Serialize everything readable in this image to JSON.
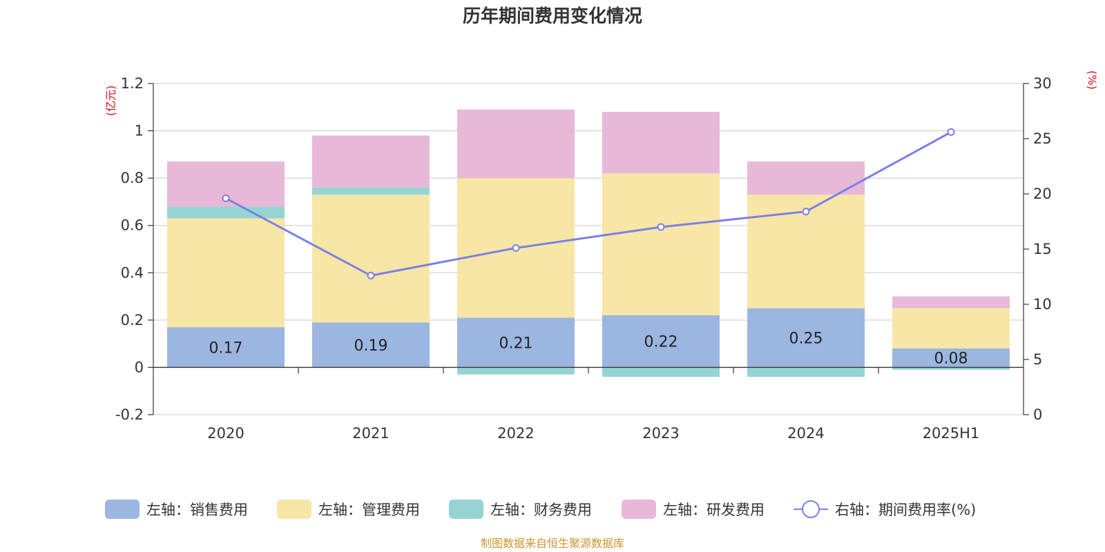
{
  "chart_data": {
    "type": "bar",
    "stacked": true,
    "title": "历年期间费用变化情况",
    "categories": [
      "2020",
      "2021",
      "2022",
      "2023",
      "2024",
      "2025H1"
    ],
    "left_axis": {
      "unit": "(亿元)",
      "ylim": [
        -0.2,
        1.2
      ],
      "ticks": [
        -0.2,
        0,
        0.2,
        0.4,
        0.6,
        0.8,
        1,
        1.2
      ],
      "tick_labels": [
        "-0.2",
        "0",
        "0.2",
        "0.4",
        "0.6",
        "0.8",
        "1",
        "1.2"
      ]
    },
    "right_axis": {
      "unit": "(%)",
      "ylim": [
        0,
        30
      ],
      "ticks": [
        0,
        5,
        10,
        15,
        20,
        25,
        30
      ],
      "tick_labels": [
        "0",
        "5",
        "10",
        "15",
        "20",
        "25",
        "30"
      ]
    },
    "grid": true,
    "legend_position": "bottom",
    "series": [
      {
        "name": "左轴：销售费用",
        "axis": "left",
        "type": "bar",
        "color": "#9bb6e0",
        "values": [
          0.17,
          0.19,
          0.21,
          0.22,
          0.25,
          0.08
        ],
        "data_labels": [
          "0.17",
          "0.19",
          "0.21",
          "0.22",
          "0.25",
          "0.08"
        ]
      },
      {
        "name": "左轴：管理费用",
        "axis": "left",
        "type": "bar",
        "color": "#f8e6a6",
        "values": [
          0.46,
          0.54,
          0.59,
          0.6,
          0.48,
          0.17
        ]
      },
      {
        "name": "左轴：财务费用",
        "axis": "left",
        "type": "bar",
        "color": "#96d4d4",
        "values": [
          0.05,
          0.03,
          -0.03,
          -0.04,
          -0.04,
          -0.01
        ]
      },
      {
        "name": "左轴：研发费用",
        "axis": "left",
        "type": "bar",
        "color": "#e8b8d8",
        "values": [
          0.19,
          0.22,
          0.29,
          0.26,
          0.14,
          0.05
        ]
      },
      {
        "name": "右轴：期间费用率(%)",
        "axis": "right",
        "type": "line",
        "color": "#7b7fe8",
        "values": [
          19.6,
          12.6,
          15.1,
          17.0,
          18.4,
          25.6
        ]
      }
    ],
    "source_note": "制图数据来自恒生聚源数据库"
  }
}
